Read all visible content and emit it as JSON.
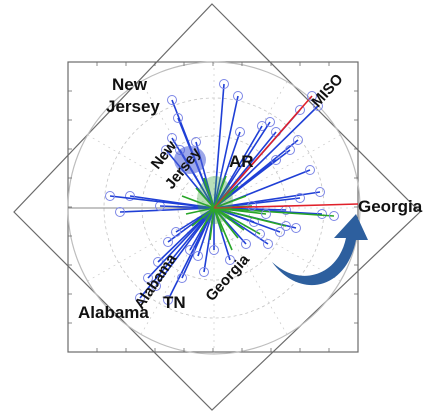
{
  "labels": {
    "new_jersey_outer": [
      "New",
      "Jersey"
    ],
    "new_jersey_inner": [
      "New",
      "Jersey"
    ],
    "ar": "AR",
    "miso": "MISO",
    "georgia_outer": "Georgia",
    "georgia_inner": "Georgia",
    "alabama_inner": "Alabama",
    "tn": "TN",
    "alabama_outer": "Alabama"
  },
  "colors": {
    "blue": "#1f3fd6",
    "green": "#27a527",
    "red": "#e0202a",
    "marker": "#7c86e6",
    "arrow": "#2d5f9e",
    "frame": "#6b6b6b",
    "grid": "#c4c4c4"
  },
  "icons": {
    "rotation_arrow": "curved-arrow-icon"
  }
}
